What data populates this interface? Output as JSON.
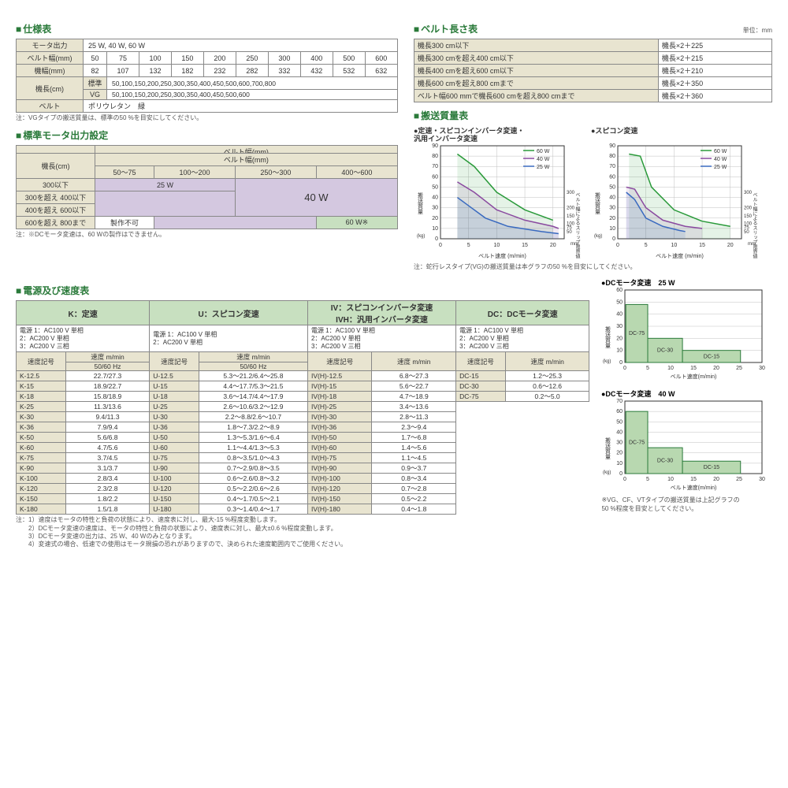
{
  "spec_table": {
    "title": "仕様表",
    "rows": [
      {
        "label": "モータ出力",
        "value": "25 W, 40 W, 60 W"
      },
      {
        "label": "ベルト幅(mm)",
        "cells": [
          "50",
          "75",
          "100",
          "150",
          "200",
          "250",
          "300",
          "400",
          "500",
          "600"
        ]
      },
      {
        "label": "機幅(mm)",
        "cells": [
          "82",
          "107",
          "132",
          "182",
          "232",
          "282",
          "332",
          "432",
          "532",
          "632"
        ]
      },
      {
        "label": "機長(cm)",
        "sublabels": [
          "標準",
          "VG"
        ],
        "row1": "50,100,150,200,250,300,350,400,450,500,600,700,800",
        "row2": "50,100,150,200,250,300,350,400,450,500,600"
      },
      {
        "label": "ベルト",
        "value": "ポリウレタン　緑"
      }
    ],
    "note": "注：VGタイプの搬送質量は、標準の50 %を目安にしてください。"
  },
  "motor_output": {
    "title": "標準モータ出力設定",
    "col_header": "ベルト幅(mm)",
    "row_header": "機長(cm)",
    "belt_cols": [
      "50～75",
      "100～200",
      "250～300",
      "400～600"
    ],
    "len_rows": [
      "300以下",
      "300を超え 400以下",
      "400を超え 600以下",
      "600を超え 800まで"
    ],
    "val_25w": "25 W",
    "val_40w": "40 W",
    "val_60w": "60 W※",
    "val_na": "製作不可",
    "note": "注：※DCモータ変速は、60 Wの製作はできません。",
    "colors": {
      "c25": "#d4c8e0",
      "c40": "#d4c8e0",
      "c60": "#c8e0c0"
    }
  },
  "belt_length": {
    "title": "ベルト長さ表",
    "unit": "単位：mm",
    "rows": [
      [
        "機長300 cm以下",
        "機長×2＋225"
      ],
      [
        "機長300 cmを超え400 cm以下",
        "機長×2＋215"
      ],
      [
        "機長400 cmを超え600 cm以下",
        "機長×2＋210"
      ],
      [
        "機長600 cmを超え800 cmまで",
        "機長×2＋350"
      ],
      [
        "ベルト幅600 mmで機長600 cmを超え800 cmまで",
        "機長×2＋360"
      ]
    ]
  },
  "mass_charts": {
    "title": "搬送質量表",
    "chart1_title": "●定速・スピコンインバータ変速・\n汎用インバータ変速",
    "chart2_title": "●スピコン変速",
    "legend": [
      "60 W",
      "40 W",
      "25 W"
    ],
    "colors": {
      "c60": "#2a9a3a",
      "c40": "#8a4aa0",
      "c25": "#3a6ac0"
    },
    "x_label": "ベルト速度 (m/min)",
    "y_label": "搬送質量",
    "y_unit": "(kg)",
    "x_ticks": [
      0,
      5,
      10,
      15,
      20
    ],
    "y_ticks": [
      0,
      10,
      20,
      30,
      40,
      50,
      60,
      70,
      80,
      90
    ],
    "y2_label": "ベルト幅によるスリップ限界値",
    "y2_unit": "mm",
    "y2_ticks": [
      50,
      75,
      100,
      150,
      200,
      300
    ],
    "grid_color": "#c0c0c0",
    "bg_color": "#ffffff",
    "chart1_series": {
      "c60": [
        [
          3,
          82
        ],
        [
          6,
          70
        ],
        [
          10,
          45
        ],
        [
          15,
          28
        ],
        [
          20,
          18
        ]
      ],
      "c40": [
        [
          3,
          55
        ],
        [
          6,
          45
        ],
        [
          10,
          28
        ],
        [
          15,
          18
        ],
        [
          20,
          12
        ],
        [
          21,
          10
        ]
      ],
      "c25": [
        [
          3,
          40
        ],
        [
          5,
          32
        ],
        [
          8,
          20
        ],
        [
          12,
          12
        ],
        [
          18,
          7
        ],
        [
          21,
          5
        ]
      ]
    },
    "chart2_series": {
      "c60": [
        [
          2,
          82
        ],
        [
          4,
          80
        ],
        [
          6,
          50
        ],
        [
          10,
          28
        ],
        [
          15,
          17
        ],
        [
          20,
          12
        ]
      ],
      "c40": [
        [
          1.5,
          50
        ],
        [
          3,
          48
        ],
        [
          5,
          30
        ],
        [
          8,
          18
        ],
        [
          12,
          12
        ],
        [
          15,
          10
        ]
      ],
      "c25": [
        [
          1.5,
          45
        ],
        [
          3,
          38
        ],
        [
          5,
          20
        ],
        [
          8,
          12
        ],
        [
          11,
          8
        ],
        [
          12,
          7
        ]
      ]
    },
    "note": "注：蛇行レスタイプ(VG)の搬送質量は本グラフの50 %を目安にしてください。"
  },
  "speed_table": {
    "title": "電源及び速度表",
    "groups": [
      {
        "name": "K：定速",
        "ps": "電源 1：AC100 V 単相\n2：AC200 V 単相\n3：AC200 V 三相",
        "h1": "速度記号",
        "h2": "速度 m/min",
        "h3": "50/60 Hz",
        "rows": [
          [
            "K-12.5",
            "22.7/27.3"
          ],
          [
            "K-15",
            "18.9/22.7"
          ],
          [
            "K-18",
            "15.8/18.9"
          ],
          [
            "K-25",
            "11.3/13.6"
          ],
          [
            "K-30",
            "9.4/11.3"
          ],
          [
            "K-36",
            "7.9/9.4"
          ],
          [
            "K-50",
            "5.6/6.8"
          ],
          [
            "K-60",
            "4.7/5.6"
          ],
          [
            "K-75",
            "3.7/4.5"
          ],
          [
            "K-90",
            "3.1/3.7"
          ],
          [
            "K-100",
            "2.8/3.4"
          ],
          [
            "K-120",
            "2.3/2.8"
          ],
          [
            "K-150",
            "1.8/2.2"
          ],
          [
            "K-180",
            "1.5/1.8"
          ]
        ]
      },
      {
        "name": "U：スピコン変速",
        "ps": "電源 1：AC100 V 単相\n2：AC200 V 単相",
        "h1": "速度記号",
        "h2": "速度 m/min",
        "h3": "50/60 Hz",
        "rows": [
          [
            "U-12.5",
            "5.3～21.2/6.4～25.8"
          ],
          [
            "U-15",
            "4.4～17.7/5.3～21.5"
          ],
          [
            "U-18",
            "3.6～14.7/4.4～17.9"
          ],
          [
            "U-25",
            "2.6～10.6/3.2～12.9"
          ],
          [
            "U-30",
            "2.2～8.8/2.6～10.7"
          ],
          [
            "U-36",
            "1.8～7.3/2.2～8.9"
          ],
          [
            "U-50",
            "1.3～5.3/1.6～6.4"
          ],
          [
            "U-60",
            "1.1～4.4/1.3～5.3"
          ],
          [
            "U-75",
            "0.8～3.5/1.0～4.3"
          ],
          [
            "U-90",
            "0.7～2.9/0.8～3.5"
          ],
          [
            "U-100",
            "0.6～2.6/0.8～3.2"
          ],
          [
            "U-120",
            "0.5～2.2/0.6～2.6"
          ],
          [
            "U-150",
            "0.4～1.7/0.5～2.1"
          ],
          [
            "U-180",
            "0.3～1.4/0.4～1.7"
          ]
        ]
      },
      {
        "name": "IV：スピコンインバータ変速\nIVH：汎用インバータ変速",
        "ps": "電源 1：AC100 V 単相\n2：AC200 V 単相\n3：AC200 V 三相",
        "h1": "速度記号",
        "h2": "速度 m/min",
        "rows": [
          [
            "IV(H)-12.5",
            "6.8～27.3"
          ],
          [
            "IV(H)-15",
            "5.6～22.7"
          ],
          [
            "IV(H)-18",
            "4.7～18.9"
          ],
          [
            "IV(H)-25",
            "3.4～13.6"
          ],
          [
            "IV(H)-30",
            "2.8～11.3"
          ],
          [
            "IV(H)-36",
            "2.3～9.4"
          ],
          [
            "IV(H)-50",
            "1.7～6.8"
          ],
          [
            "IV(H)-60",
            "1.4～5.6"
          ],
          [
            "IV(H)-75",
            "1.1～4.5"
          ],
          [
            "IV(H)-90",
            "0.9～3.7"
          ],
          [
            "IV(H)-100",
            "0.8～3.4"
          ],
          [
            "IV(H)-120",
            "0.7～2.8"
          ],
          [
            "IV(H)-150",
            "0.5～2.2"
          ],
          [
            "IV(H)-180",
            "0.4～1.8"
          ]
        ]
      },
      {
        "name": "DC：DCモータ変速",
        "ps": "電源 1：AC100 V 単相\n2：AC200 V 単相\n3：AC200 V 三相",
        "h1": "速度記号",
        "h2": "速度 m/min",
        "rows": [
          [
            "DC-15",
            "1.2～25.3"
          ],
          [
            "DC-30",
            "0.6～12.6"
          ],
          [
            "DC-75",
            "0.2～5.0"
          ]
        ]
      }
    ],
    "notes": [
      "注：1）速度はモータの特性と負荷の状態により、速度表に対し、最大-15 %程度変動します。",
      "　　2）DCモータ変速の速度は、モータの特性と負荷の状態により、速度表に対し、最大±0.6 %程度変動します。",
      "　　3）DCモータ変速の出力は、25 W、40 Wのみとなります。",
      "　　4）変速式の場合、低速での使用はモータ規損の恐れがありますので、決められた速度範囲内でご使用ください。"
    ]
  },
  "dc_charts": {
    "chart1_title": "●DCモータ変速　25 W",
    "chart2_title": "●DCモータ変速　40 W",
    "x_label": "ベルト速度(m/min)",
    "y_label": "搬送質量",
    "y_unit": "(kg)",
    "x_ticks": [
      0,
      5,
      10,
      15,
      20,
      25,
      30
    ],
    "bar_color": "#b8d8b0",
    "bar_border": "#2a7a3a",
    "grid_color": "#c0c0c0",
    "chart1": {
      "y_ticks": [
        0,
        10,
        20,
        30,
        40,
        50,
        60
      ],
      "bars": [
        {
          "label": "DC-75",
          "x0": 0.2,
          "x1": 5,
          "h": 48
        },
        {
          "label": "DC-30",
          "x0": 5,
          "x1": 12.6,
          "h": 20
        },
        {
          "label": "DC-15",
          "x0": 12.6,
          "x1": 25.3,
          "h": 10
        }
      ]
    },
    "chart2": {
      "y_ticks": [
        0,
        10,
        20,
        30,
        40,
        50,
        60,
        70
      ],
      "bars": [
        {
          "label": "DC-75",
          "x0": 0.2,
          "x1": 5,
          "h": 60
        },
        {
          "label": "DC-30",
          "x0": 5,
          "x1": 12.6,
          "h": 25
        },
        {
          "label": "DC-15",
          "x0": 12.6,
          "x1": 25.3,
          "h": 12
        }
      ]
    },
    "note": "※VG、CF、VTタイプの搬送質量は上記グラフの\n50 %程度を目安としてください。"
  }
}
